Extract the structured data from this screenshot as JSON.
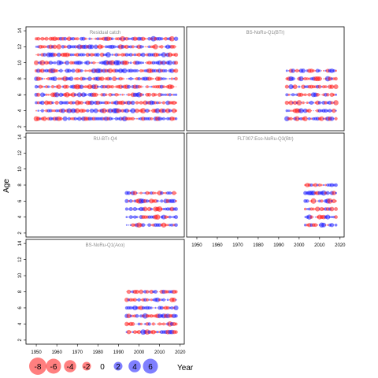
{
  "chart_data": {
    "type": "scatter",
    "ylabel": "Age",
    "xlabel": "Year",
    "xlim": [
      1945,
      2022
    ],
    "ylim": [
      1.5,
      14.5
    ],
    "xticks": [
      "1950",
      "1960",
      "1970",
      "1980",
      "1990",
      "2000",
      "2010",
      "2020"
    ],
    "yticks": [
      "2",
      "4",
      "6",
      "8",
      "10",
      "12",
      "14"
    ],
    "colors": {
      "positive": "#0000ff",
      "negative": "#ff0000"
    },
    "panels": [
      {
        "title": "Residual catch",
        "year_range": [
          1950,
          2018
        ],
        "ages": [
          3,
          4,
          5,
          6,
          7,
          8,
          9,
          10,
          11,
          12,
          13
        ]
      },
      {
        "title": "BS-NoRu-Q1(BTr)",
        "year_range": [
          1994,
          2018
        ],
        "ages": [
          3,
          4,
          5,
          6,
          7,
          8,
          9
        ]
      },
      {
        "title": "RU-BTr-Q4",
        "year_range": [
          1994,
          2018
        ],
        "ages": [
          3,
          4,
          5,
          6,
          7
        ]
      },
      {
        "title": "FLT007:Eco-NoRu-Q3(Btr)",
        "year_range": [
          2003,
          2018
        ],
        "ages": [
          3,
          4,
          5,
          6,
          7,
          8
        ]
      },
      {
        "title": "BS-NoRu-Q1(Aco)",
        "year_range": [
          1994,
          2018
        ],
        "ages": [
          3,
          4,
          5,
          6,
          7,
          8
        ]
      }
    ],
    "legend": {
      "values": [
        "-8",
        "-6",
        "-4",
        "-2",
        "0",
        "2",
        "4",
        "6"
      ]
    }
  }
}
